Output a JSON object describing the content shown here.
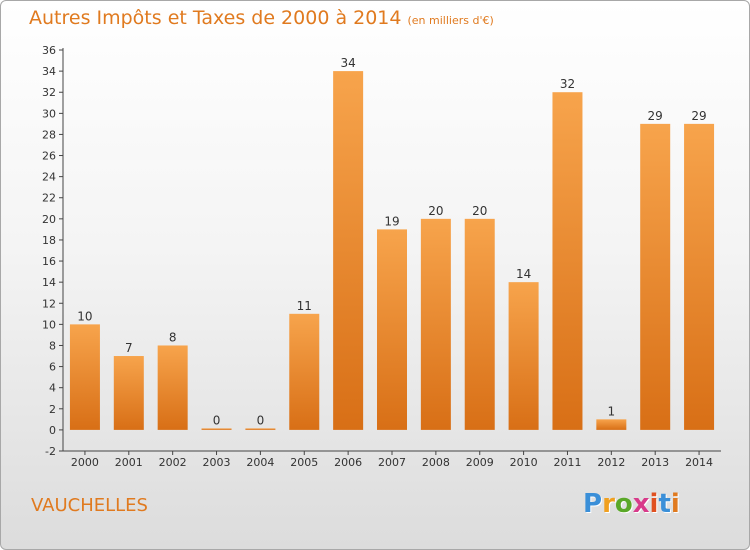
{
  "title": "Autres Impôts et Taxes de 2000 à 2014",
  "subtitle": "(en milliers d'€)",
  "town": "VAUCHELLES",
  "logo": "Proxiti",
  "colors": {
    "accent": "#e07a1f",
    "bar_light": "#f7a44c",
    "bar_dark": "#d86f16"
  },
  "chart_data": {
    "type": "bar",
    "title": "Autres Impôts et Taxes de 2000 à 2014",
    "subtitle": "(en milliers d'€)",
    "categories": [
      "2000",
      "2001",
      "2002",
      "2003",
      "2004",
      "2005",
      "2006",
      "2007",
      "2008",
      "2009",
      "2010",
      "2011",
      "2012",
      "2013",
      "2014"
    ],
    "values": [
      10,
      7,
      8,
      0,
      0,
      11,
      34,
      19,
      20,
      20,
      14,
      32,
      1,
      29,
      29
    ],
    "data_labels": [
      "10",
      "7",
      "8",
      "0",
      "0",
      "11",
      "34",
      "19",
      "20",
      "20",
      "14",
      "32",
      "1",
      "29",
      "29"
    ],
    "yticks": [
      "-2",
      "0",
      "2",
      "4",
      "6",
      "8",
      "10",
      "12",
      "14",
      "16",
      "18",
      "20",
      "22",
      "24",
      "26",
      "28",
      "30",
      "32",
      "34",
      "36"
    ],
    "ylim": [
      -2,
      36
    ],
    "grid": false,
    "legend": "none"
  }
}
